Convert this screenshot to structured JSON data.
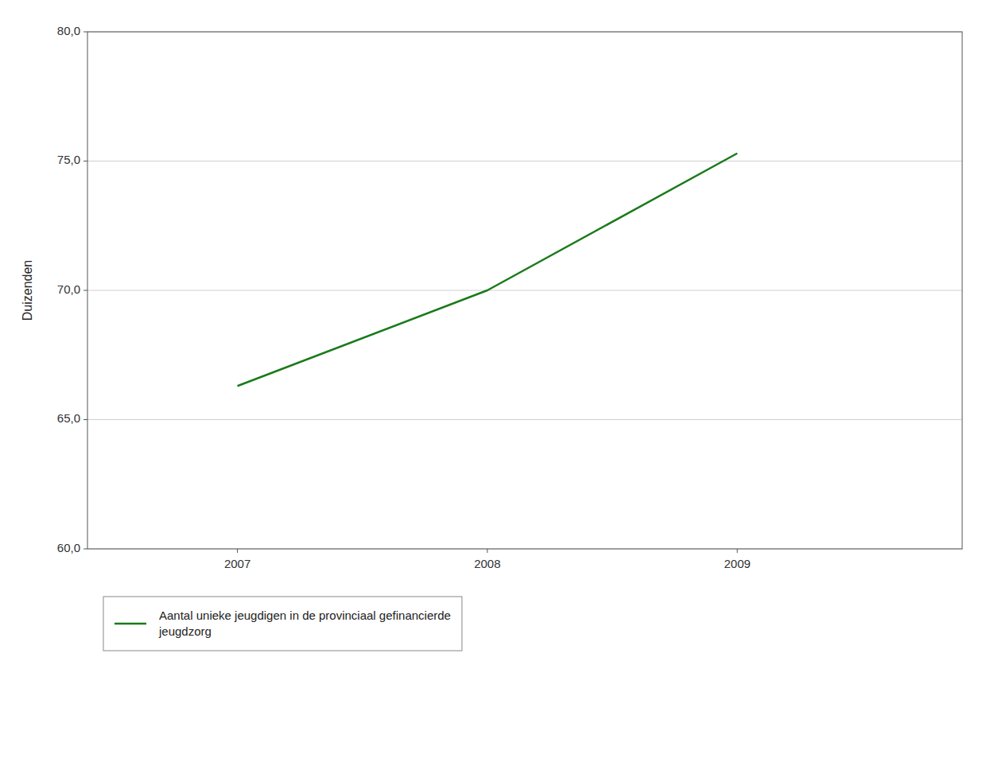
{
  "chart_data": {
    "type": "line",
    "ylabel": "Duizenden",
    "x": [
      2007,
      2008,
      2009
    ],
    "series": [
      {
        "name": "Aantal unieke jeugdigen in de provinciaal gefinancierde\njeugdzorg",
        "color": "#1a7a1a",
        "values": [
          66.3,
          70.0,
          75.3
        ]
      }
    ],
    "xlim": [
      2006.4,
      2009.9
    ],
    "xticks": [
      2007,
      2008,
      2009
    ],
    "ylim": [
      60.0,
      80.0
    ],
    "yticks": [
      {
        "value": 60.0,
        "label": "60,0"
      },
      {
        "value": 65.0,
        "label": "65,0"
      },
      {
        "value": 70.0,
        "label": "70,0"
      },
      {
        "value": 75.0,
        "label": "75,0"
      },
      {
        "value": 80.0,
        "label": "80,0"
      }
    ],
    "grid": true,
    "legend": "bottom"
  }
}
